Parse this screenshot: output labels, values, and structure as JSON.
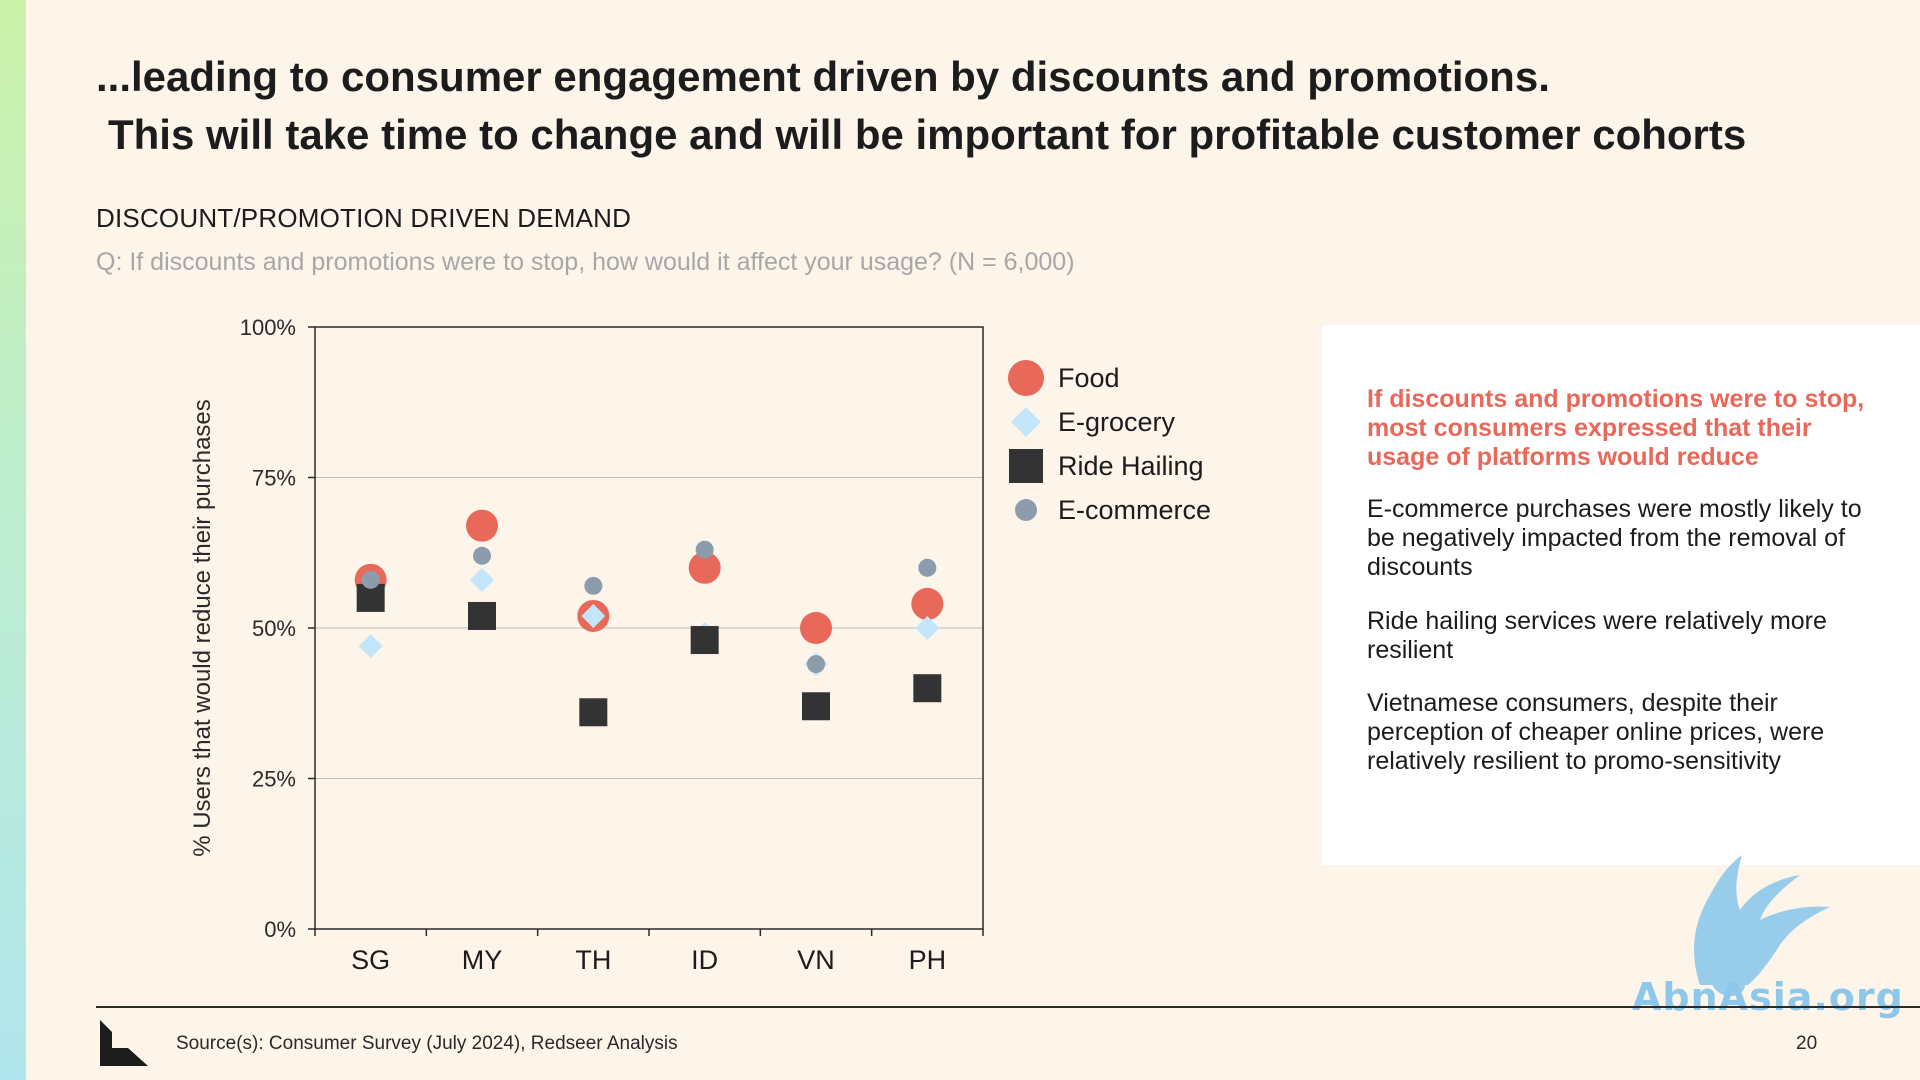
{
  "slide": {
    "title_line1": "...leading to consumer engagement driven by discounts and promotions.",
    "title_line2": "This will take time to change and will be important for profitable customer cohorts",
    "section_label": "DISCOUNT/PROMOTION DRIVEN DEMAND",
    "question": "Q: If discounts and promotions were to stop, how would it affect your usage? (N = 6,000)",
    "source": "Source(s): Consumer Survey (July 2024), Redseer Analysis",
    "page_number": "20",
    "watermark_text": "AbnAsia.org"
  },
  "panel": {
    "highlight": "If discounts and promotions were to stop, most consumers expressed that their usage of platforms would reduce",
    "points": [
      "E-commerce purchases were mostly likely to be negatively impacted from the removal of discounts",
      "Ride hailing services were relatively more resilient",
      "Vietnamese consumers, despite their perception of cheaper online prices, were relatively resilient to promo-sensitivity"
    ]
  },
  "colors": {
    "food": "#e8685a",
    "egrocery": "#c3e6fb",
    "ride_hailing": "#333333",
    "ecommerce": "#8c9cad",
    "highlight": "#e8685a"
  },
  "chart_data": {
    "type": "scatter",
    "ylabel": "% Users that would reduce their purchases",
    "xlabel": "",
    "categories": [
      "SG",
      "MY",
      "TH",
      "ID",
      "VN",
      "PH"
    ],
    "ylim": [
      0,
      100
    ],
    "yticks": [
      0,
      25,
      50,
      75,
      100
    ],
    "ytick_labels": [
      "0%",
      "25%",
      "50%",
      "75%",
      "100%"
    ],
    "grid": true,
    "legend_position": "right",
    "series": [
      {
        "name": "Food",
        "marker": "circle-large",
        "color": "#e8685a",
        "values": [
          58,
          67,
          52,
          60,
          50,
          54
        ]
      },
      {
        "name": "E-grocery",
        "marker": "diamond",
        "color": "#c3e6fb",
        "values": [
          47,
          58,
          52,
          49,
          44,
          50
        ]
      },
      {
        "name": "Ride Hailing",
        "marker": "square",
        "color": "#333333",
        "values": [
          55,
          52,
          36,
          48,
          37,
          40
        ]
      },
      {
        "name": "E-commerce",
        "marker": "circle-small",
        "color": "#8c9cad",
        "values": [
          58,
          62,
          57,
          63,
          44,
          60
        ]
      }
    ]
  }
}
